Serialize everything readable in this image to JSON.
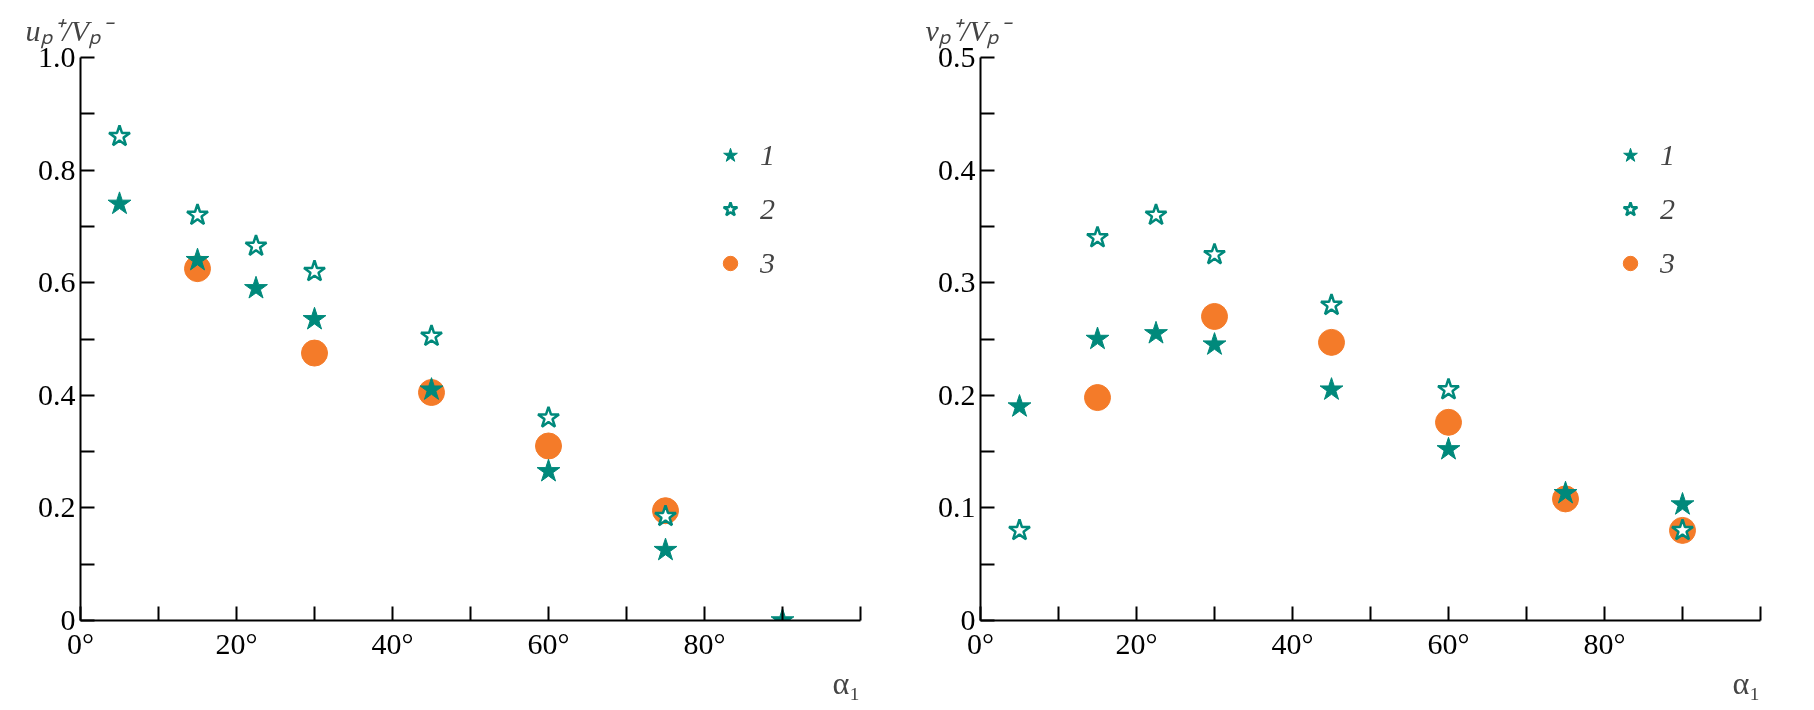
{
  "chart_data": [
    {
      "type": "scatter",
      "xlabel": "α₁",
      "ylabel": "uₚ⁺/Vₚ⁻",
      "x": [
        5,
        15,
        22.5,
        30,
        45,
        60,
        75,
        90
      ],
      "xlim": [
        0,
        100
      ],
      "xticks": [
        {
          "value": 0,
          "label": "0°"
        },
        {
          "value": 10,
          "label": null
        },
        {
          "value": 20,
          "label": "20°"
        },
        {
          "value": 30,
          "label": null
        },
        {
          "value": 40,
          "label": "40°"
        },
        {
          "value": 50,
          "label": null
        },
        {
          "value": 60,
          "label": "60°"
        },
        {
          "value": 70,
          "label": null
        },
        {
          "value": 80,
          "label": "80°"
        },
        {
          "value": 90,
          "label": null
        },
        {
          "value": 100,
          "label": null
        }
      ],
      "ylim": [
        0,
        1.0
      ],
      "yticks": [
        0,
        {
          "value": 0.1,
          "label": null
        },
        0.2,
        {
          "value": 0.3,
          "label": null
        },
        0.4,
        {
          "value": 0.5,
          "label": null
        },
        0.6,
        {
          "value": 0.7,
          "label": null
        },
        0.8,
        {
          "value": 0.9,
          "label": null
        },
        {
          "value": 1.0,
          "label": "1.0"
        }
      ],
      "grid": false,
      "legend": "top right",
      "series": [
        {
          "name": "1",
          "color": "#00897b",
          "marker": "star",
          "values": [
            0.74,
            0.64,
            0.59,
            0.535,
            0.41,
            0.265,
            0.125,
            0.0
          ]
        },
        {
          "name": "2",
          "color": "#00897b",
          "marker": "star_open",
          "values": [
            0.86,
            0.72,
            0.665,
            0.62,
            0.505,
            0.36,
            0.185,
            null
          ]
        },
        {
          "name": "3",
          "color": "#f47b29",
          "marker": "circle",
          "values": [
            null,
            0.625,
            null,
            0.475,
            0.405,
            0.31,
            0.195,
            null
          ]
        }
      ]
    },
    {
      "type": "scatter",
      "xlabel": "α₁",
      "ylabel": "vₚ⁺/Vₚ⁻",
      "x": [
        5,
        15,
        22.5,
        30,
        45,
        60,
        75,
        90
      ],
      "xlim": [
        0,
        100
      ],
      "xticks": [
        {
          "value": 0,
          "label": "0°"
        },
        {
          "value": 10,
          "label": null
        },
        {
          "value": 20,
          "label": "20°"
        },
        {
          "value": 30,
          "label": null
        },
        {
          "value": 40,
          "label": "40°"
        },
        {
          "value": 50,
          "label": null
        },
        {
          "value": 60,
          "label": "60°"
        },
        {
          "value": 70,
          "label": null
        },
        {
          "value": 80,
          "label": "80°"
        },
        {
          "value": 90,
          "label": null
        },
        {
          "value": 100,
          "label": null
        }
      ],
      "ylim": [
        0,
        0.5
      ],
      "yticks": [
        0,
        {
          "value": 0.05,
          "label": null
        },
        0.1,
        {
          "value": 0.15,
          "label": null
        },
        0.2,
        {
          "value": 0.25,
          "label": null
        },
        0.3,
        {
          "value": 0.35,
          "label": null
        },
        0.4,
        {
          "value": 0.45,
          "label": null
        },
        0.5
      ],
      "grid": false,
      "legend": "top right",
      "series": [
        {
          "name": "1",
          "color": "#00897b",
          "marker": "star",
          "values": [
            0.19,
            0.25,
            0.255,
            0.245,
            0.205,
            0.152,
            0.113,
            0.103
          ]
        },
        {
          "name": "2",
          "color": "#00897b",
          "marker": "star_open",
          "values": [
            0.08,
            0.34,
            0.36,
            0.325,
            0.28,
            0.205,
            null,
            0.08
          ]
        },
        {
          "name": "3",
          "color": "#f47b29",
          "marker": "circle",
          "values": [
            null,
            0.198,
            null,
            0.27,
            0.247,
            0.176,
            0.108,
            0.08
          ]
        }
      ]
    }
  ]
}
